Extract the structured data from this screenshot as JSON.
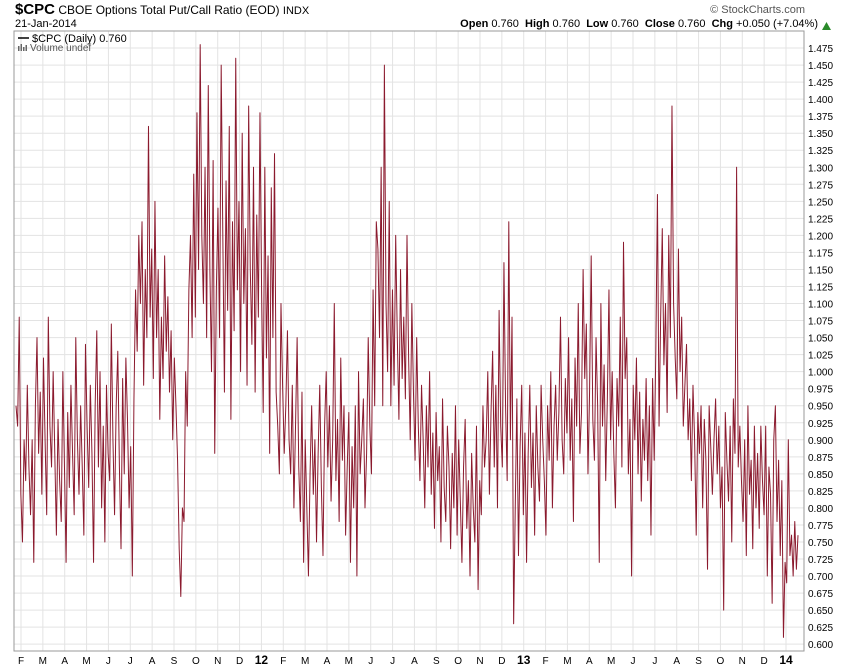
{
  "header": {
    "symbol": "$CPC",
    "title": "CBOE Options Total Put/Call Ratio (EOD)",
    "exchange": "INDX",
    "date": "21-Jan-2014",
    "copyright": "© StockCharts.com",
    "open_label": "Open",
    "open_value": "0.760",
    "high_label": "High",
    "high_value": "0.760",
    "low_label": "Low",
    "low_value": "0.760",
    "close_label": "Close",
    "close_value": "0.760",
    "chg_label": "Chg",
    "chg_value": "+0.050 (+7.04%)",
    "up_color": "#2a8a2a"
  },
  "legend": {
    "series_label": "$CPC (Daily) 0.760",
    "volume_label": "Volume undef"
  },
  "chart_data": {
    "type": "line",
    "ylim": [
      0.59,
      1.5
    ],
    "y_ticks": [
      "0.600",
      "0.625",
      "0.650",
      "0.675",
      "0.700",
      "0.725",
      "0.750",
      "0.775",
      "0.800",
      "0.825",
      "0.850",
      "0.875",
      "0.900",
      "0.925",
      "0.950",
      "0.975",
      "1.000",
      "1.025",
      "1.050",
      "1.075",
      "1.100",
      "1.125",
      "1.150",
      "1.175",
      "1.200",
      "1.225",
      "1.250",
      "1.275",
      "1.300",
      "1.325",
      "1.350",
      "1.375",
      "1.400",
      "1.425",
      "1.450",
      "1.475"
    ],
    "x_labels": [
      "F",
      "M",
      "A",
      "M",
      "J",
      "J",
      "A",
      "S",
      "O",
      "N",
      "D",
      "12",
      "F",
      "M",
      "A",
      "M",
      "J",
      "J",
      "A",
      "S",
      "O",
      "N",
      "D",
      "13",
      "F",
      "M",
      "A",
      "M",
      "J",
      "J",
      "A",
      "S",
      "O",
      "N",
      "D",
      "14"
    ],
    "x_label_bold": [
      "12",
      "13",
      "14"
    ],
    "grid": true,
    "line_color": "#8b1a2e",
    "series": [
      {
        "name": "$CPC (Daily)",
        "values": [
          0.95,
          0.92,
          1.08,
          0.82,
          0.75,
          0.9,
          0.84,
          0.98,
          0.86,
          0.79,
          0.9,
          0.72,
          0.95,
          1.05,
          0.88,
          0.97,
          0.82,
          1.02,
          0.9,
          0.79,
          1.08,
          0.92,
          0.86,
          1.0,
          0.88,
          0.76,
          0.93,
          0.84,
          0.78,
          1.0,
          0.86,
          0.72,
          0.94,
          0.83,
          0.98,
          0.88,
          0.79,
          1.05,
          0.9,
          0.82,
          0.95,
          0.86,
          0.76,
          1.04,
          0.92,
          0.83,
          0.98,
          0.88,
          0.72,
          0.95,
          1.06,
          0.86,
          1.0,
          0.8,
          0.92,
          0.75,
          0.98,
          0.88,
          0.84,
          1.07,
          0.9,
          0.79,
          0.95,
          1.03,
          0.86,
          0.74,
          0.99,
          0.85,
          1.02,
          0.93,
          0.8,
          0.89,
          0.7,
          0.96,
          1.12,
          1.03,
          1.2,
          1.1,
          1.22,
          0.98,
          1.15,
          1.05,
          1.36,
          1.08,
          1.18,
          0.99,
          1.25,
          1.05,
          1.15,
          0.93,
          1.08,
          0.99,
          1.17,
          1.03,
          1.11,
          0.97,
          1.06,
          0.9,
          1.02,
          0.95,
          0.87,
          0.74,
          0.67,
          0.8,
          0.78,
          1.0,
          0.92,
          1.12,
          1.2,
          1.05,
          1.29,
          1.08,
          1.38,
          1.15,
          1.48,
          1.2,
          1.1,
          1.3,
          1.05,
          1.42,
          1.15,
          1.0,
          1.31,
          0.88,
          1.12,
          1.24,
          1.05,
          1.45,
          1.2,
          0.97,
          1.28,
          1.09,
          1.36,
          0.93,
          1.22,
          1.06,
          1.46,
          1.12,
          1.25,
          1.0,
          1.35,
          1.1,
          1.21,
          0.98,
          1.39,
          1.15,
          1.04,
          1.3,
          0.97,
          1.23,
          1.08,
          1.38,
          1.12,
          0.94,
          1.3,
          1.02,
          1.17,
          0.88,
          1.27,
          1.05,
          1.32,
          0.97,
          0.92,
          0.85,
          1.1,
          0.98,
          0.88,
          0.95,
          1.06,
          0.9,
          0.85,
          0.98,
          0.8,
          0.92,
          1.05,
          0.86,
          0.78,
          0.97,
          0.72,
          0.9,
          0.8,
          0.7,
          0.85,
          0.95,
          0.82,
          0.9,
          0.75,
          0.88,
          0.98,
          0.83,
          0.73,
          0.92,
          1.0,
          0.86,
          0.95,
          0.81,
          0.9,
          1.1,
          0.84,
          0.93,
          0.78,
          1.02,
          0.87,
          0.95,
          0.76,
          0.86,
          0.94,
          0.72,
          0.89,
          0.8,
          0.95,
          0.7,
          1.0,
          0.85,
          0.9,
          0.96,
          0.8,
          0.88,
          1.05,
          0.92,
          0.85,
          1.12,
          0.95,
          1.22,
          1.18,
          1.05,
          1.3,
          0.95,
          1.45,
          1.1,
          1.0,
          1.25,
          0.95,
          1.12,
          0.98,
          1.2,
          1.05,
          0.93,
          1.15,
          0.99,
          1.08,
          0.96,
          1.2,
          1.02,
          0.9,
          1.1,
          0.97,
          0.87,
          1.05,
          0.92,
          0.84,
          0.98,
          0.9,
          0.8,
          0.95,
          0.86,
          1.0,
          0.82,
          0.91,
          0.77,
          0.94,
          0.84,
          0.89,
          0.75,
          0.96,
          0.83,
          0.78,
          0.92,
          0.86,
          0.74,
          0.88,
          0.8,
          0.95,
          0.76,
          0.9,
          0.81,
          0.72,
          0.86,
          0.93,
          0.77,
          0.84,
          0.7,
          0.88,
          0.8,
          0.75,
          0.92,
          0.68,
          0.84,
          0.79,
          0.95,
          0.86,
          0.9,
          1.0,
          0.82,
          0.94,
          1.03,
          0.86,
          0.98,
          0.8,
          1.09,
          0.92,
          0.86,
          1.16,
          0.95,
          0.84,
          1.22,
          0.9,
          1.08,
          0.63,
          0.8,
          0.96,
          0.73,
          0.89,
          0.98,
          0.79,
          0.91,
          0.72,
          0.88,
          0.98,
          0.83,
          0.91,
          0.76,
          0.95,
          0.86,
          0.81,
          0.98,
          0.9,
          0.84,
          0.76,
          0.95,
          0.87,
          1.0,
          0.8,
          0.92,
          0.98,
          0.87,
          0.94,
          1.08,
          0.9,
          0.85,
          0.99,
          0.91,
          1.05,
          0.87,
          0.96,
          0.78,
          1.02,
          0.92,
          1.1,
          0.88,
          0.94,
          1.15,
          0.99,
          1.07,
          0.85,
          0.97,
          1.17,
          0.93,
          0.87,
          1.05,
          0.95,
          0.72,
          1.1,
          0.92,
          1.01,
          0.84,
          0.96,
          1.12,
          0.9,
          1.0,
          0.88,
          0.8,
          0.99,
          0.92,
          1.08,
          0.86,
          1.19,
          0.99,
          1.05,
          0.85,
          0.93,
          0.7,
          0.98,
          0.9,
          1.02,
          0.85,
          0.97,
          0.81,
          0.93,
          0.87,
          0.99,
          0.84,
          0.95,
          0.76,
          0.99,
          0.87,
          1.03,
          1.26,
          0.92,
          1.08,
          1.21,
          1.01,
          1.1,
          0.94,
          1.2,
          1.05,
          1.39,
          1.1,
          1.02,
          0.96,
          1.18,
          1.0,
          1.08,
          0.92,
          0.98,
          1.04,
          0.9,
          0.96,
          0.84,
          0.98,
          0.9,
          0.76,
          0.94,
          0.88,
          0.95,
          0.8,
          0.93,
          0.87,
          0.71,
          0.95,
          0.89,
          0.82,
          0.9,
          0.96,
          0.85,
          0.92,
          0.8,
          0.86,
          0.65,
          0.94,
          0.87,
          0.81,
          0.92,
          0.75,
          0.96,
          0.88,
          1.3,
          0.86,
          0.92,
          0.84,
          0.78,
          0.9,
          0.73,
          0.95,
          0.82,
          0.87,
          0.74,
          0.92,
          0.8,
          0.88,
          0.77,
          0.92,
          0.84,
          0.79,
          0.92,
          0.7,
          0.86,
          0.82,
          0.66,
          0.9,
          0.95,
          0.78,
          0.87,
          0.73,
          0.84,
          0.61,
          0.72,
          0.69,
          0.9,
          0.73,
          0.76,
          0.7,
          0.78,
          0.71,
          0.76
        ]
      }
    ]
  }
}
